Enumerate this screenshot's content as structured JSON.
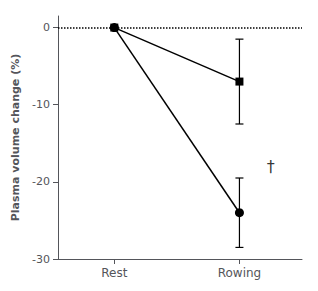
{
  "chart_data": {
    "type": "line",
    "ylabel": "Plasma volume change (%)",
    "x": [
      0,
      1
    ],
    "xlim": [
      -0.45,
      1.5
    ],
    "xticks": [
      {
        "value": 0,
        "label": "Rest"
      },
      {
        "value": 1,
        "label": "Rowing"
      }
    ],
    "ylim": [
      -30,
      1.5
    ],
    "yticks": [
      0,
      -10,
      -20,
      -30
    ],
    "grid": false,
    "series": [
      {
        "values": [
          0,
          -7.0
        ],
        "marker": "square",
        "color": "#000000",
        "error_lower": [
          null,
          5.5
        ],
        "error_upper": [
          null,
          5.5
        ]
      },
      {
        "values": [
          0,
          -24.0
        ],
        "marker": "circle",
        "color": "#000000",
        "error_lower": [
          null,
          4.5
        ],
        "error_upper": [
          null,
          4.5
        ]
      }
    ],
    "reference_lines": [
      {
        "y": 0,
        "line_style": "dotted"
      }
    ],
    "annotations": [
      {
        "text": "†",
        "x": 1.25,
        "y": -18.0
      }
    ]
  }
}
